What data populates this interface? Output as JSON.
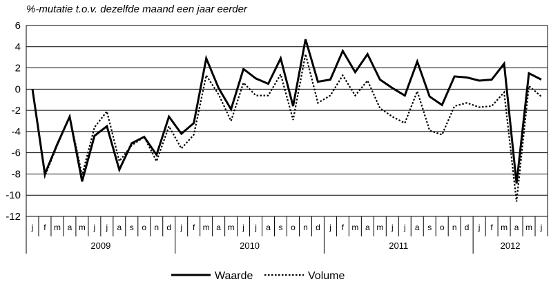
{
  "chart_data": {
    "type": "line",
    "ylabel": "%-mutatie  t.o.v. dezelfde maand een jaar eerder",
    "xlabel": "",
    "ylim": [
      -12,
      6
    ],
    "yticks": [
      6,
      4,
      2,
      0,
      -2,
      -4,
      -6,
      -8,
      -10,
      -12
    ],
    "grid": true,
    "legend_position": "bottom",
    "categories": [
      "j",
      "f",
      "m",
      "a",
      "m",
      "j",
      "j",
      "a",
      "s",
      "o",
      "n",
      "d",
      "j",
      "f",
      "m",
      "a",
      "m",
      "j",
      "j",
      "a",
      "s",
      "o",
      "n",
      "d",
      "j",
      "f",
      "m",
      "a",
      "m",
      "j",
      "j",
      "a",
      "s",
      "o",
      "n",
      "d",
      "j",
      "f",
      "m",
      "a",
      "m",
      "j"
    ],
    "years": [
      {
        "label": "2009",
        "start": 0,
        "end": 12
      },
      {
        "label": "2010",
        "start": 12,
        "end": 24
      },
      {
        "label": "2011",
        "start": 24,
        "end": 36
      },
      {
        "label": "2012",
        "start": 36,
        "end": 42
      }
    ],
    "series": [
      {
        "name": "Waarde",
        "style": "solid",
        "color": "#000000",
        "values": [
          0,
          -8.0,
          -5.2,
          -2.6,
          -8.7,
          -4.4,
          -3.5,
          -7.6,
          -5.1,
          -4.5,
          -6.2,
          -2.6,
          -4.2,
          -3.2,
          2.9,
          0.1,
          -1.9,
          1.9,
          1.0,
          0.5,
          2.9,
          -1.6,
          4.7,
          0.7,
          0.9,
          3.6,
          1.6,
          3.3,
          0.9,
          0.1,
          -0.6,
          2.6,
          -0.7,
          -1.5,
          1.2,
          1.1,
          0.8,
          0.9,
          2.4,
          -8.9,
          1.5,
          0.9
        ]
      },
      {
        "name": "Volume",
        "style": "dotted",
        "color": "#000000",
        "values": [
          0,
          -8.2,
          -5.3,
          -2.6,
          -8.1,
          -3.6,
          -2.1,
          -6.8,
          -5.3,
          -4.5,
          -6.8,
          -3.5,
          -5.6,
          -4.3,
          1.3,
          -0.5,
          -3.0,
          0.6,
          -0.6,
          -0.6,
          1.4,
          -2.9,
          3.3,
          -1.3,
          -0.6,
          1.3,
          -0.6,
          0.8,
          -1.8,
          -2.6,
          -3.2,
          -0.2,
          -3.9,
          -4.3,
          -1.6,
          -1.3,
          -1.7,
          -1.6,
          -0.3,
          -10.6,
          0.3,
          -0.7
        ]
      }
    ]
  }
}
